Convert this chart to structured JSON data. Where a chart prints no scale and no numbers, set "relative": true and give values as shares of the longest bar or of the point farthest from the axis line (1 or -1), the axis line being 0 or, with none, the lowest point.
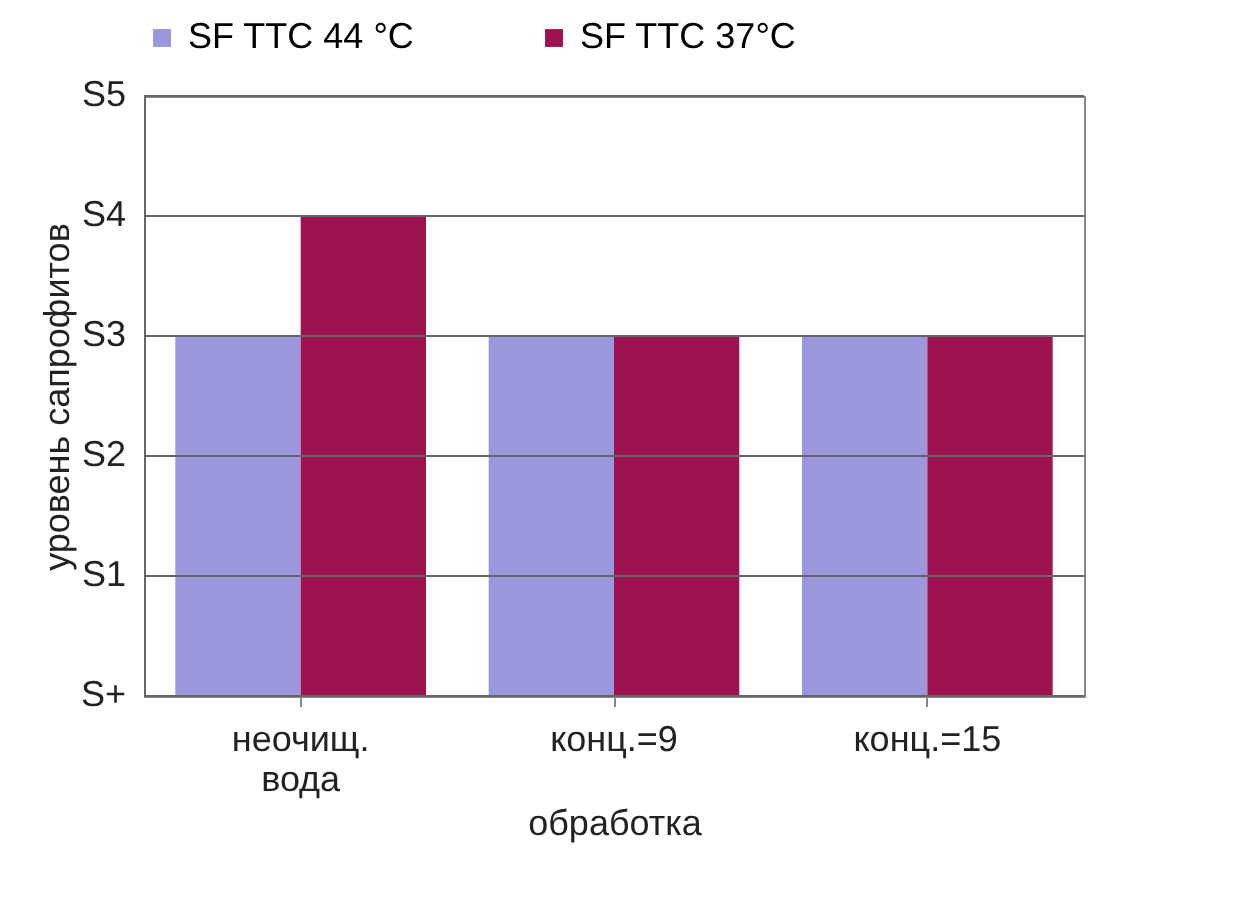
{
  "chart_data": {
    "type": "bar",
    "relative": true,
    "xlabel": "обработка",
    "ylabel": "уровень сапрофитов",
    "categories": [
      "неочищ. вода",
      "конц.=9",
      "конц.=15"
    ],
    "series": [
      {
        "name": "SF TTC 44 °C",
        "color": "#9b97dc",
        "values": [
          0.75,
          0.75,
          0.75
        ]
      },
      {
        "name": "SF TTC 37°C",
        "color": "#9c1350",
        "values": [
          1,
          0.75,
          0.75
        ]
      }
    ],
    "ref_lines": [
      {
        "axis": "y",
        "value": 0,
        "label": "S+"
      },
      {
        "axis": "y",
        "value": 0.25,
        "label": "S1"
      },
      {
        "axis": "y",
        "value": 0.5,
        "label": "S2"
      },
      {
        "axis": "y",
        "value": 0.75,
        "label": "S3"
      },
      {
        "axis": "y",
        "value": 1,
        "label": "S4"
      },
      {
        "axis": "y",
        "value": 1.25,
        "label": "S5"
      }
    ],
    "legend": "top"
  }
}
